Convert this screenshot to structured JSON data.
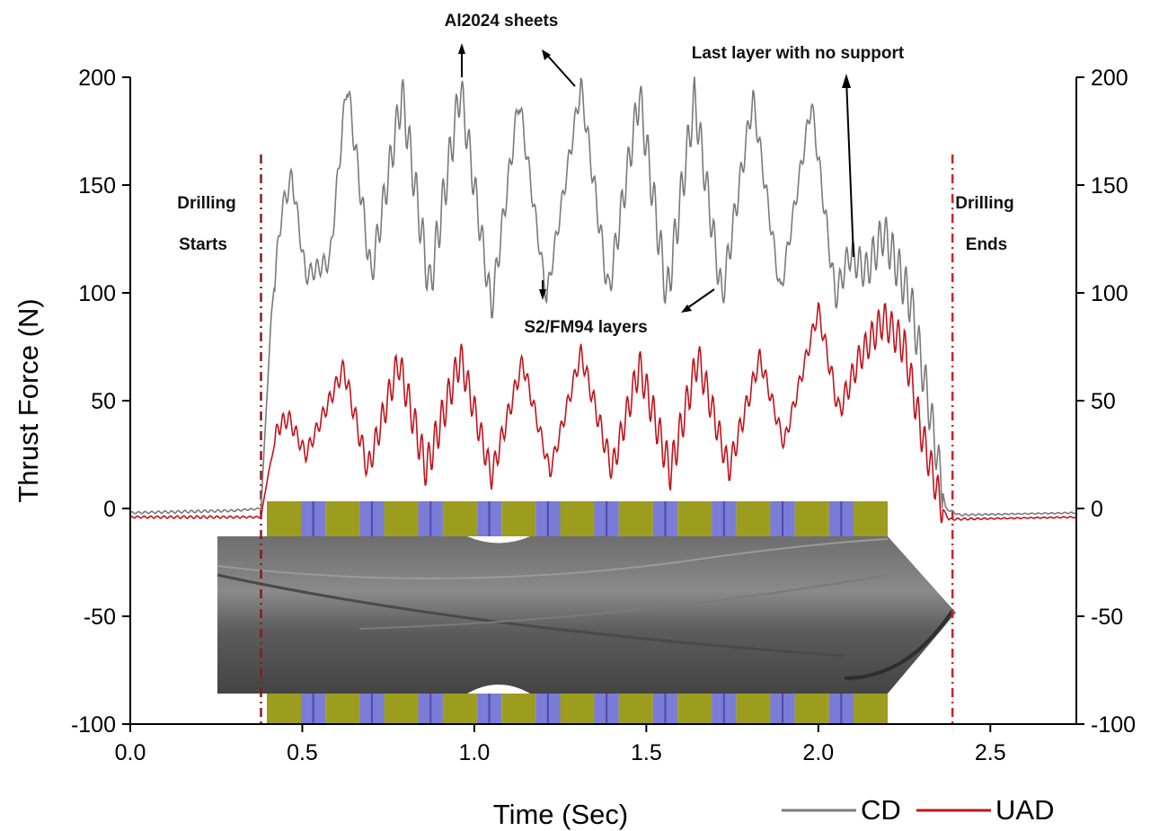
{
  "chart_data": {
    "type": "line",
    "xlabel": "Time (Sec)",
    "ylabel": "Thrust Force (N)",
    "xlim": [
      0.0,
      2.75
    ],
    "ylim": [
      -100,
      200
    ],
    "x_ticks": [
      "0.0",
      "0.5",
      "1.0",
      "1.5",
      "2.0",
      "2.5"
    ],
    "x_tick_values": [
      0.0,
      0.5,
      1.0,
      1.5,
      2.0,
      2.5
    ],
    "y_ticks": [
      "-100",
      "-50",
      "0",
      "50",
      "100",
      "150",
      "200"
    ],
    "y_tick_values": [
      -100,
      -50,
      0,
      50,
      100,
      150,
      200
    ],
    "right_axis_mirrors_left": true,
    "grid": false,
    "legend_position": "bottom-right",
    "series": [
      {
        "name": "CD",
        "color": "#7a7a7a",
        "points": [
          [
            0.0,
            -2
          ],
          [
            0.3,
            -1
          ],
          [
            0.38,
            0
          ],
          [
            0.41,
            90
          ],
          [
            0.44,
            138
          ],
          [
            0.47,
            154
          ],
          [
            0.51,
            108
          ],
          [
            0.58,
            115
          ],
          [
            0.63,
            198
          ],
          [
            0.7,
            108
          ],
          [
            0.79,
            192
          ],
          [
            0.87,
            102
          ],
          [
            0.96,
            195
          ],
          [
            1.05,
            93
          ],
          [
            1.13,
            190
          ],
          [
            1.21,
            98
          ],
          [
            1.31,
            196
          ],
          [
            1.39,
            100
          ],
          [
            1.48,
            192
          ],
          [
            1.56,
            98
          ],
          [
            1.64,
            190
          ],
          [
            1.72,
            98
          ],
          [
            1.81,
            190
          ],
          [
            1.89,
            100
          ],
          [
            1.98,
            188
          ],
          [
            2.05,
            98
          ],
          [
            2.09,
            118
          ],
          [
            2.14,
            110
          ],
          [
            2.19,
            128
          ],
          [
            2.23,
            112
          ],
          [
            2.27,
            95
          ],
          [
            2.33,
            40
          ],
          [
            2.37,
            0
          ],
          [
            2.41,
            -3
          ],
          [
            2.75,
            -2
          ]
        ]
      },
      {
        "name": "UAD",
        "color": "#c0141c",
        "points": [
          [
            0.0,
            -4
          ],
          [
            0.38,
            -4
          ],
          [
            0.4,
            15
          ],
          [
            0.43,
            38
          ],
          [
            0.46,
            42
          ],
          [
            0.51,
            25
          ],
          [
            0.62,
            65
          ],
          [
            0.69,
            18
          ],
          [
            0.78,
            68
          ],
          [
            0.86,
            18
          ],
          [
            0.96,
            70
          ],
          [
            1.05,
            15
          ],
          [
            1.14,
            68
          ],
          [
            1.22,
            17
          ],
          [
            1.31,
            72
          ],
          [
            1.4,
            18
          ],
          [
            1.48,
            66
          ],
          [
            1.57,
            17
          ],
          [
            1.65,
            70
          ],
          [
            1.74,
            18
          ],
          [
            1.83,
            70
          ],
          [
            1.9,
            30
          ],
          [
            2.0,
            92
          ],
          [
            2.06,
            45
          ],
          [
            2.12,
            70
          ],
          [
            2.19,
            88
          ],
          [
            2.25,
            75
          ],
          [
            2.3,
            35
          ],
          [
            2.36,
            0
          ],
          [
            2.38,
            -5
          ],
          [
            2.75,
            -4
          ]
        ]
      }
    ],
    "vertical_markers": [
      {
        "x": 0.38,
        "label_lines": [
          "Drilling",
          "Starts"
        ],
        "color": "#8b1a1a"
      },
      {
        "x": 2.39,
        "label_lines": [
          "Drilling",
          "Ends"
        ],
        "color": "#d42020"
      }
    ],
    "annotations": [
      {
        "text": "Al2024 sheets"
      },
      {
        "text": "Last layer with no support"
      },
      {
        "text": "S2/FM94 layers"
      }
    ],
    "inset_drill_stack": {
      "layer_pattern": [
        "Al2024",
        "S2/FM94",
        "Al2024",
        "S2/FM94",
        "Al2024",
        "S2/FM94",
        "Al2024",
        "S2/FM94",
        "Al2024",
        "S2/FM94",
        "Al2024",
        "S2/FM94",
        "Al2024",
        "S2/FM94",
        "Al2024",
        "S2/FM94",
        "Al2024",
        "S2/FM94",
        "Al2024",
        "S2/FM94",
        "Al2024"
      ],
      "al_color": "#9c9c1e",
      "fm_color": "#7b7bd8",
      "drill_color": "#5e5e5e"
    }
  }
}
